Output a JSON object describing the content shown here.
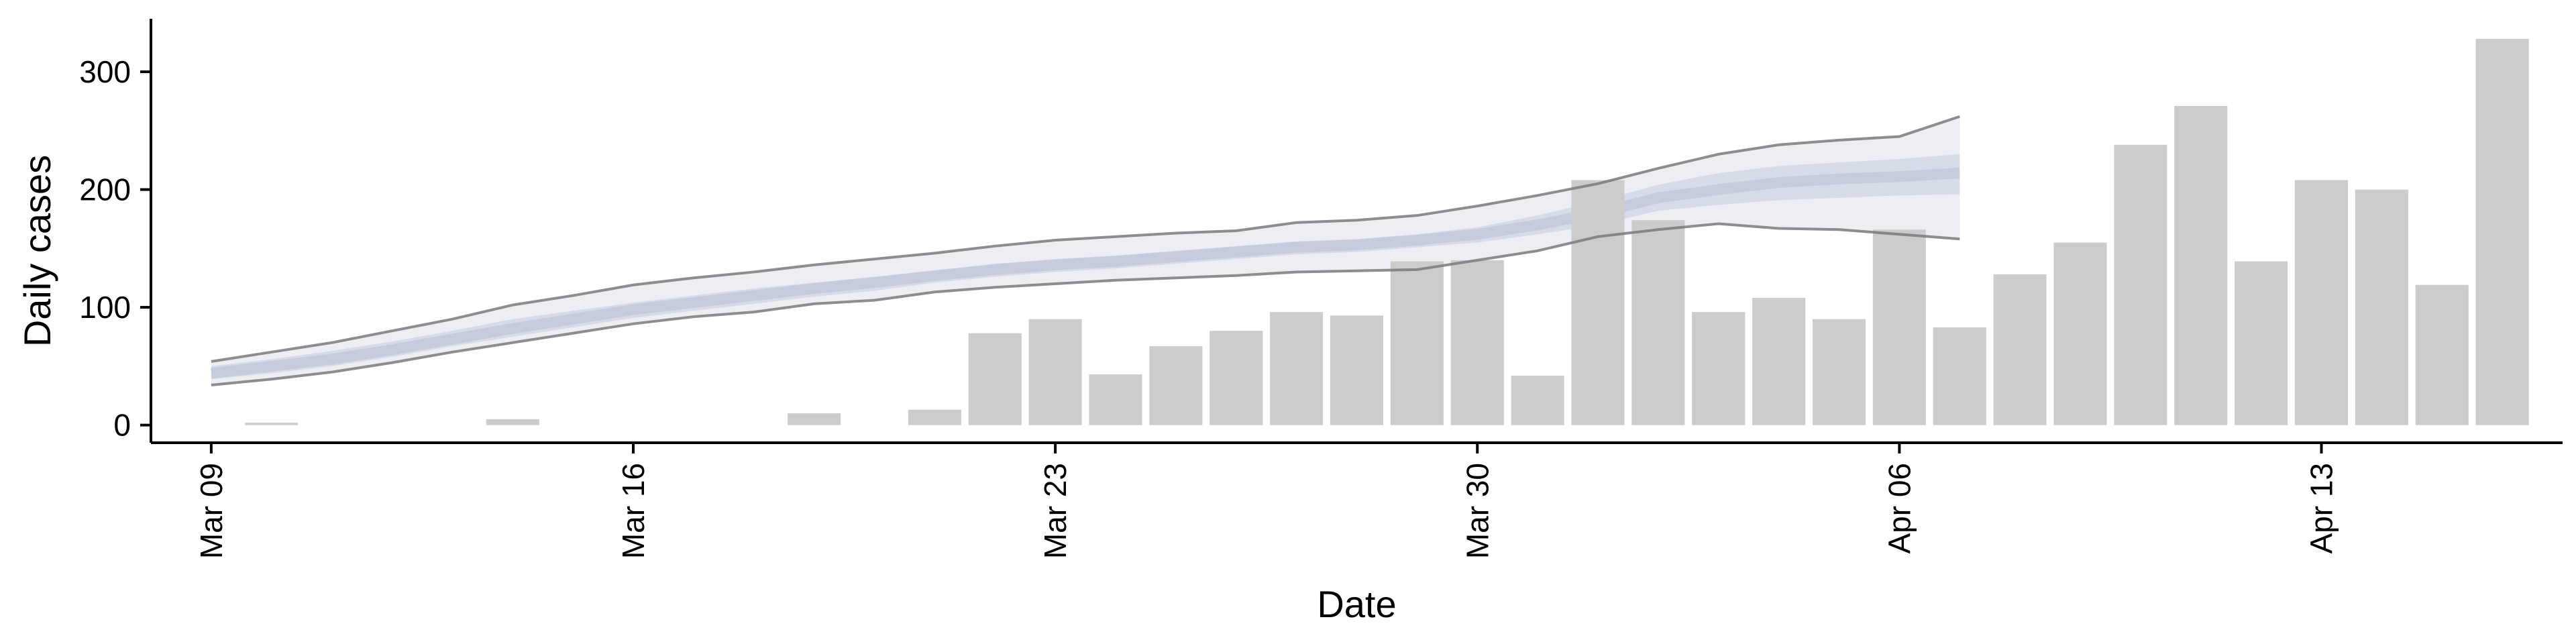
{
  "chart_data": {
    "type": "bar",
    "title": "",
    "xlabel": "Date",
    "ylabel": "Daily cases",
    "ylim": [
      -15,
      345
    ],
    "xlim": [
      "2020-03-08",
      "2020-04-17"
    ],
    "y_ticks": [
      0,
      100,
      200,
      300
    ],
    "x_ticks": [
      {
        "date": "2020-03-09",
        "label": "Mar 09"
      },
      {
        "date": "2020-03-16",
        "label": "Mar 16"
      },
      {
        "date": "2020-03-23",
        "label": "Mar 23"
      },
      {
        "date": "2020-03-30",
        "label": "Mar 30"
      },
      {
        "date": "2020-04-06",
        "label": "Apr 06"
      },
      {
        "date": "2020-04-13",
        "label": "Apr 13"
      }
    ],
    "x_tick_rotation": 90,
    "grid": false,
    "legend": "none",
    "colors": {
      "bars": "#cccccc",
      "band_outer": "#e6e8f0",
      "band_inner": "#c8cee0",
      "median": "#b8bfd6",
      "interval_line": "#7a7a7a"
    },
    "bars": [
      {
        "date": "2020-03-10",
        "value": 2
      },
      {
        "date": "2020-03-14",
        "value": 5
      },
      {
        "date": "2020-03-19",
        "value": 10
      },
      {
        "date": "2020-03-21",
        "value": 13
      },
      {
        "date": "2020-03-22",
        "value": 78
      },
      {
        "date": "2020-03-23",
        "value": 90
      },
      {
        "date": "2020-03-24",
        "value": 43
      },
      {
        "date": "2020-03-25",
        "value": 67
      },
      {
        "date": "2020-03-26",
        "value": 80
      },
      {
        "date": "2020-03-27",
        "value": 96
      },
      {
        "date": "2020-03-28",
        "value": 93
      },
      {
        "date": "2020-03-29",
        "value": 139
      },
      {
        "date": "2020-03-30",
        "value": 140
      },
      {
        "date": "2020-03-31",
        "value": 42
      },
      {
        "date": "2020-04-01",
        "value": 208
      },
      {
        "date": "2020-04-02",
        "value": 174
      },
      {
        "date": "2020-04-03",
        "value": 96
      },
      {
        "date": "2020-04-04",
        "value": 108
      },
      {
        "date": "2020-04-05",
        "value": 90
      },
      {
        "date": "2020-04-06",
        "value": 166
      },
      {
        "date": "2020-04-07",
        "value": 83
      },
      {
        "date": "2020-04-08",
        "value": 128
      },
      {
        "date": "2020-04-09",
        "value": 155
      },
      {
        "date": "2020-04-10",
        "value": 238
      },
      {
        "date": "2020-04-11",
        "value": 271
      },
      {
        "date": "2020-04-12",
        "value": 139
      },
      {
        "date": "2020-04-13",
        "value": 208
      },
      {
        "date": "2020-04-14",
        "value": 200
      },
      {
        "date": "2020-04-15",
        "value": 119
      },
      {
        "date": "2020-04-16",
        "value": 328
      }
    ],
    "estimate": {
      "dates": [
        "2020-03-09",
        "2020-03-10",
        "2020-03-11",
        "2020-03-12",
        "2020-03-13",
        "2020-03-14",
        "2020-03-15",
        "2020-03-16",
        "2020-03-17",
        "2020-03-18",
        "2020-03-19",
        "2020-03-20",
        "2020-03-21",
        "2020-03-22",
        "2020-03-23",
        "2020-03-24",
        "2020-03-25",
        "2020-03-26",
        "2020-03-27",
        "2020-03-28",
        "2020-03-29",
        "2020-03-30",
        "2020-03-31",
        "2020-04-01",
        "2020-04-02",
        "2020-04-03",
        "2020-04-04",
        "2020-04-05",
        "2020-04-06",
        "2020-04-07"
      ],
      "median": [
        44,
        50,
        56,
        64,
        73,
        82,
        90,
        98,
        104,
        110,
        116,
        121,
        127,
        132,
        136,
        139,
        143,
        147,
        151,
        153,
        157,
        162,
        170,
        180,
        193,
        200,
        206,
        209,
        211,
        214
      ],
      "upper_90": [
        54,
        62,
        70,
        80,
        90,
        102,
        110,
        119,
        125,
        130,
        136,
        141,
        146,
        152,
        157,
        160,
        163,
        165,
        172,
        174,
        178,
        186,
        195,
        205,
        218,
        230,
        238,
        242,
        245,
        262
      ],
      "lower_90": [
        34,
        39,
        45,
        53,
        62,
        70,
        78,
        86,
        92,
        96,
        103,
        106,
        113,
        117,
        120,
        123,
        125,
        127,
        130,
        131,
        132,
        140,
        148,
        160,
        166,
        171,
        167,
        166,
        162,
        158
      ],
      "upper_50": [
        50,
        56,
        63,
        71,
        80,
        90,
        97,
        104,
        110,
        116,
        121,
        126,
        131,
        137,
        141,
        144,
        148,
        152,
        156,
        158,
        162,
        168,
        178,
        190,
        204,
        214,
        220,
        223,
        226,
        230
      ],
      "lower_50": [
        39,
        44,
        50,
        58,
        67,
        75,
        83,
        91,
        97,
        103,
        109,
        114,
        121,
        126,
        130,
        133,
        137,
        141,
        145,
        147,
        151,
        155,
        162,
        170,
        182,
        187,
        191,
        193,
        195,
        196
      ]
    }
  }
}
